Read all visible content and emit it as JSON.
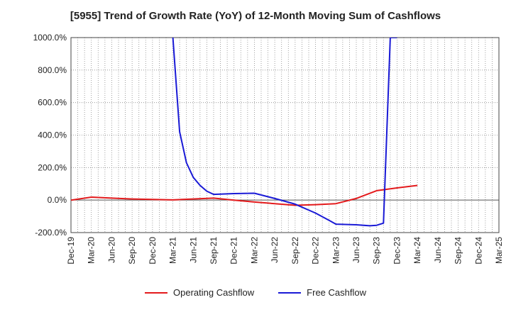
{
  "chart_data": {
    "type": "line",
    "title": "[5955]  Trend of Growth Rate (YoY) of 12-Month Moving Sum of Cashflows",
    "xlabel": "",
    "ylabel": "",
    "categories": [
      "Dec-19",
      "Mar-20",
      "Jun-20",
      "Sep-20",
      "Dec-20",
      "Mar-21",
      "Jun-21",
      "Sep-21",
      "Dec-21",
      "Mar-22",
      "Jun-22",
      "Sep-22",
      "Dec-22",
      "Mar-23",
      "Jun-23",
      "Sep-23",
      "Dec-23",
      "Mar-24",
      "Jun-24",
      "Sep-24",
      "Dec-24",
      "Mar-25"
    ],
    "yticks": [
      "1000.0%",
      "800.0%",
      "600.0%",
      "400.0%",
      "200.0%",
      "0.0%",
      "-200.0%"
    ],
    "ylim": [
      -200,
      1000
    ],
    "grid": true,
    "legend_position": "bottom",
    "series": [
      {
        "name": "Operating Cashflow",
        "color": "#e31a1c",
        "x": [
          "2019-12",
          "2020-03",
          "2020-06",
          "2020-09",
          "2020-12",
          "2021-03",
          "2021-06",
          "2021-09",
          "2021-12",
          "2022-03",
          "2022-06",
          "2022-09",
          "2022-12",
          "2023-03",
          "2023-06",
          "2023-09",
          "2023-12",
          "2024-03"
        ],
        "values": [
          0,
          18,
          12,
          7,
          4,
          1,
          7,
          12,
          0,
          -12,
          -22,
          -32,
          -28,
          -22,
          10,
          58,
          75,
          90
        ]
      },
      {
        "name": "Free Cashflow",
        "color": "#1a1ad6",
        "x": [
          "2021-03",
          "2021-04",
          "2021-05",
          "2021-06",
          "2021-07",
          "2021-08",
          "2021-09",
          "2021-12",
          "2022-03",
          "2022-06",
          "2022-09",
          "2022-12",
          "2023-02",
          "2023-03",
          "2023-06",
          "2023-08",
          "2023-09",
          "2023-10",
          "2023-11",
          "2023-12"
        ],
        "values": [
          1000,
          420,
          230,
          140,
          90,
          55,
          35,
          40,
          42,
          10,
          -25,
          -80,
          -125,
          -148,
          -152,
          -158,
          -155,
          -142,
          1000,
          1000
        ]
      }
    ]
  }
}
